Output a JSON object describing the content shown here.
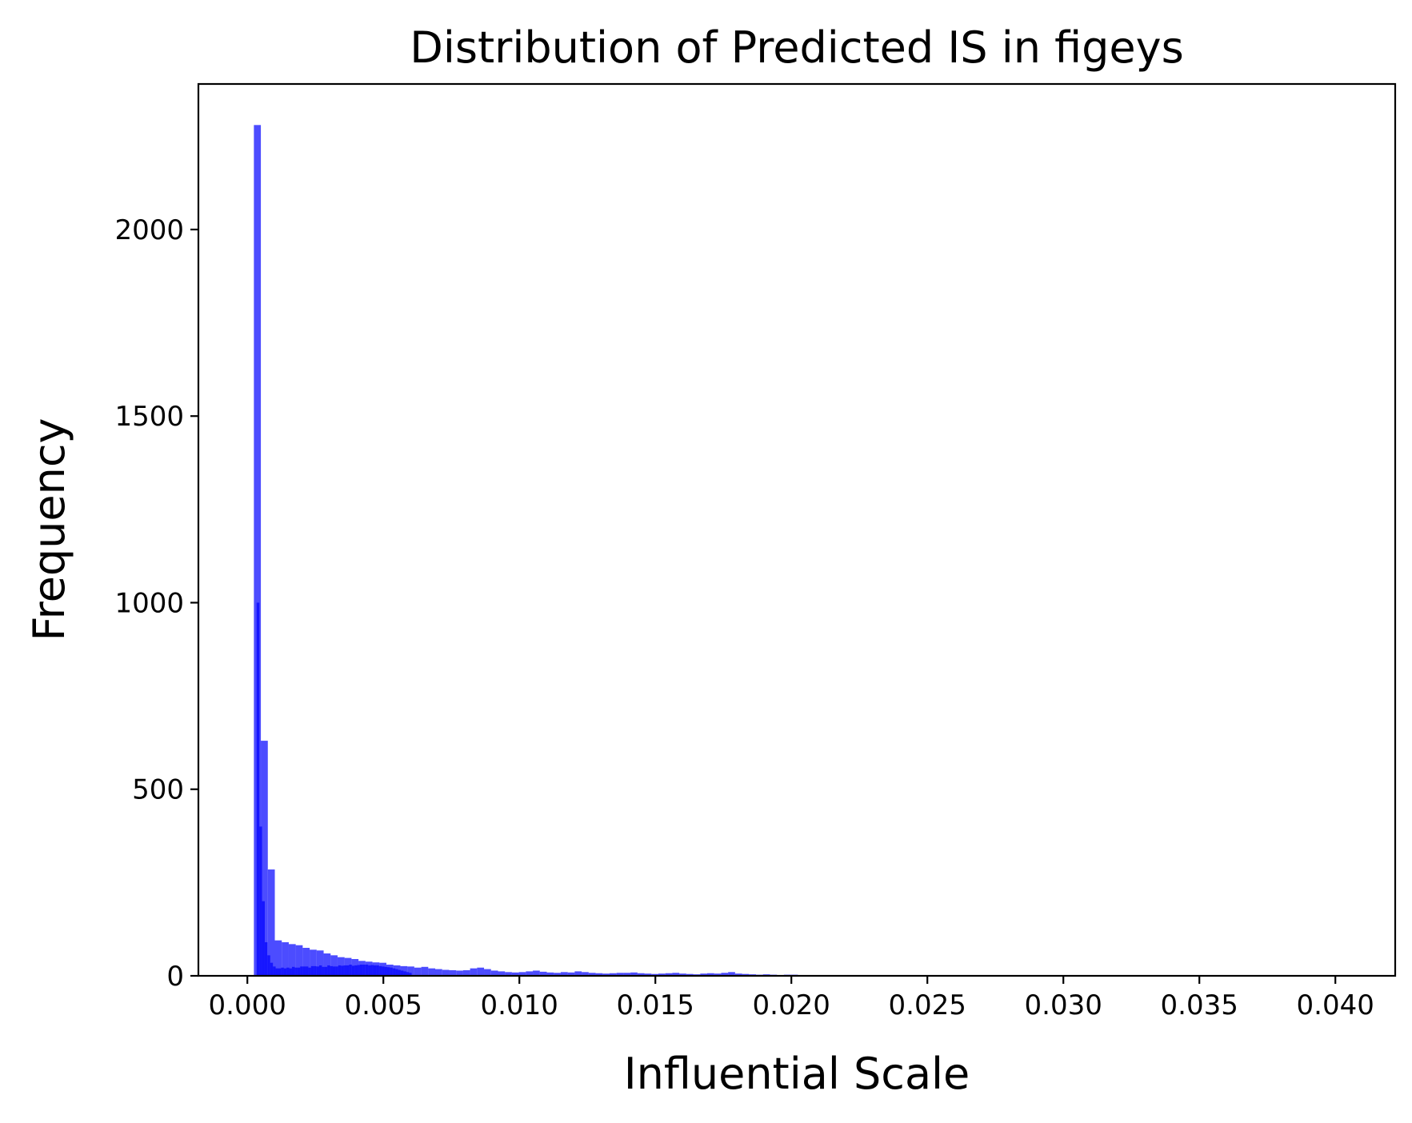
{
  "chart_data": {
    "type": "bar",
    "title": "Distribution of Predicted IS in figeys",
    "xlabel": "Influential Scale",
    "ylabel": "Frequency",
    "xlim": [
      -0.0018,
      0.0422
    ],
    "ylim": [
      0,
      2390
    ],
    "xticks": [
      0.0,
      0.005,
      0.01,
      0.015,
      0.02,
      0.025,
      0.03,
      0.035,
      0.04
    ],
    "xtick_labels": [
      "0.000",
      "0.005",
      "0.010",
      "0.015",
      "0.020",
      "0.025",
      "0.030",
      "0.035",
      "0.040"
    ],
    "yticks": [
      0,
      500,
      1000,
      1500,
      2000
    ],
    "ytick_labels": [
      "0",
      "500",
      "1000",
      "1500",
      "2000"
    ],
    "grid": false,
    "series": [
      {
        "color": "#0000ff",
        "alpha": 0.7,
        "bin_width": 0.0002564,
        "bin_starts": [
          0.00024,
          0.000496,
          0.000753,
          0.001009,
          0.001266,
          0.001522,
          0.001778,
          0.002035,
          0.002291,
          0.002548,
          0.002804,
          0.00306,
          0.003317,
          0.003573,
          0.00383,
          0.004086,
          0.004342,
          0.004599,
          0.004855,
          0.005112,
          0.005368,
          0.005624,
          0.005881,
          0.006137,
          0.006394,
          0.00665,
          0.006906,
          0.007163,
          0.007419,
          0.007676,
          0.007932,
          0.008188,
          0.008445,
          0.008701,
          0.008958,
          0.009214,
          0.00947,
          0.009727,
          0.009983,
          0.01024,
          0.010496,
          0.010752,
          0.011009,
          0.011265,
          0.011522,
          0.011778,
          0.012034,
          0.012291,
          0.012547,
          0.012804,
          0.01306,
          0.013316,
          0.013573,
          0.013829,
          0.014086,
          0.014342,
          0.014598,
          0.014855,
          0.015111,
          0.015368,
          0.015624,
          0.01588,
          0.016137,
          0.016393,
          0.01665,
          0.016906,
          0.017162,
          0.017419,
          0.017675,
          0.017932,
          0.018188,
          0.018444,
          0.018701,
          0.018957,
          0.019214,
          0.01947,
          0.019726,
          0.019983,
          0.020239,
          0.020496,
          0.020752,
          0.021008,
          0.021265,
          0.021521,
          0.021778,
          0.022034,
          0.02229,
          0.022547,
          0.022803,
          0.02306,
          0.023316,
          0.023572,
          0.023829,
          0.024085,
          0.024342,
          0.024598,
          0.024854,
          0.025111,
          0.025367
        ],
        "values": [
          2280,
          630,
          285,
          95,
          90,
          85,
          82,
          75,
          70,
          68,
          60,
          55,
          50,
          48,
          45,
          40,
          38,
          36,
          35,
          30,
          28,
          26,
          25,
          22,
          24,
          20,
          18,
          16,
          15,
          14,
          15,
          20,
          22,
          18,
          14,
          12,
          10,
          9,
          10,
          12,
          14,
          11,
          9,
          8,
          10,
          9,
          12,
          10,
          8,
          7,
          6,
          7,
          8,
          8,
          9,
          7,
          6,
          5,
          6,
          7,
          8,
          6,
          5,
          4,
          6,
          7,
          6,
          8,
          10,
          6,
          5,
          4,
          3,
          4,
          3,
          2,
          3,
          3,
          2,
          2,
          2,
          2,
          1,
          1,
          1,
          2,
          1,
          1,
          1,
          1,
          1,
          1,
          1,
          1,
          1,
          1,
          1,
          1,
          1
        ]
      },
      {
        "color": "#0000ff",
        "alpha": 0.7,
        "bin_width": 0.0001,
        "bin_starts": [
          0.00034,
          0.00044,
          0.00054,
          0.00064,
          0.00074,
          0.00084,
          0.00094,
          0.00104,
          0.00114,
          0.00124,
          0.00134,
          0.00144,
          0.00154,
          0.00164,
          0.00174,
          0.00184,
          0.00194,
          0.00204,
          0.00214,
          0.00224,
          0.00234,
          0.00244,
          0.00254,
          0.00264,
          0.00274,
          0.00284,
          0.00294,
          0.00304,
          0.00314,
          0.00324,
          0.00334,
          0.00344,
          0.00354,
          0.00364,
          0.00374,
          0.00384,
          0.00394,
          0.00404,
          0.00414,
          0.00424,
          0.00434,
          0.00444,
          0.00454,
          0.00464,
          0.00474,
          0.00484,
          0.00494,
          0.00504,
          0.00514,
          0.00524,
          0.00534,
          0.00544,
          0.00554,
          0.00564,
          0.00574,
          0.00584,
          0.00594
        ],
        "values": [
          1000,
          400,
          200,
          90,
          55,
          35,
          25,
          20,
          20,
          22,
          20,
          22,
          20,
          24,
          22,
          22,
          25,
          25,
          25,
          22,
          26,
          26,
          25,
          28,
          24,
          24,
          28,
          26,
          25,
          25,
          28,
          27,
          28,
          28,
          30,
          27,
          28,
          29,
          30,
          30,
          30,
          28,
          29,
          28,
          28,
          26,
          25,
          24,
          23,
          22,
          20,
          18,
          16,
          14,
          12,
          10,
          8
        ]
      }
    ]
  }
}
